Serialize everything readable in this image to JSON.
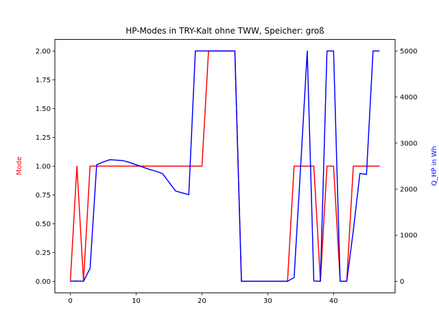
{
  "chart_data": {
    "type": "line",
    "title": "HP-Modes in TRY-Kalt ohne TWW, Speicher: groß",
    "xlabel": "",
    "ylabel_left": "Mode",
    "ylabel_right": "Q_HP in Wh",
    "xlim": [
      -2.35,
      49.35
    ],
    "ylim_left": [
      -0.1,
      2.1
    ],
    "ylim_right": [
      -250,
      5250
    ],
    "x_ticks": [
      0,
      10,
      20,
      30,
      40
    ],
    "y_left_ticks": [
      0.0,
      0.25,
      0.5,
      0.75,
      1.0,
      1.25,
      1.5,
      1.75,
      2.0
    ],
    "y_left_tick_labels": [
      "0.00",
      "0.25",
      "0.50",
      "0.75",
      "1.00",
      "1.25",
      "1.50",
      "1.75",
      "2.00"
    ],
    "y_right_ticks": [
      0,
      1000,
      2000,
      3000,
      4000,
      5000
    ],
    "grid": false,
    "colors": {
      "mode": "#ff0000",
      "q_hp": "#0000ff",
      "axis": "#000000"
    },
    "series": [
      {
        "name": "Mode",
        "axis": "left",
        "color": "#ff0000",
        "x": [
          0,
          1,
          2,
          3,
          4,
          5,
          6,
          7,
          8,
          9,
          10,
          11,
          12,
          13,
          14,
          15,
          16,
          17,
          18,
          19,
          20,
          21,
          22,
          23,
          24,
          25,
          26,
          27,
          28,
          29,
          30,
          31,
          32,
          33,
          34,
          35,
          36,
          37,
          38,
          39,
          40,
          41,
          42,
          43,
          44,
          45,
          46,
          47
        ],
        "values": [
          0,
          1,
          0,
          1,
          1,
          1,
          1,
          1,
          1,
          1,
          1,
          1,
          1,
          1,
          1,
          1,
          1,
          1,
          1,
          1,
          1,
          2,
          2,
          2,
          2,
          2,
          0,
          0,
          0,
          0,
          0,
          0,
          0,
          0,
          1,
          1,
          1,
          1,
          0,
          1,
          1,
          0,
          0,
          1,
          1,
          1,
          1,
          1
        ]
      },
      {
        "name": "Q_HP in Wh",
        "axis": "right",
        "color": "#0000ff",
        "x": [
          0,
          1,
          2,
          3,
          4,
          5,
          6,
          7,
          8,
          9,
          10,
          11,
          12,
          13,
          14,
          15,
          16,
          17,
          18,
          19,
          20,
          21,
          22,
          23,
          24,
          25,
          26,
          27,
          28,
          29,
          30,
          31,
          32,
          33,
          34,
          35,
          36,
          37,
          38,
          39,
          40,
          41,
          42,
          43,
          44,
          45,
          46,
          47
        ],
        "values": [
          0,
          5,
          0,
          280,
          2530,
          2590,
          2640,
          2630,
          2620,
          2580,
          2530,
          2480,
          2430,
          2390,
          2340,
          2150,
          1960,
          1920,
          1880,
          5000,
          5000,
          5000,
          5000,
          5000,
          5000,
          5000,
          0,
          0,
          0,
          0,
          0,
          0,
          0,
          0,
          80,
          2500,
          5000,
          5,
          0,
          5000,
          5000,
          0,
          0,
          1100,
          2340,
          2320,
          5000,
          5000
        ]
      }
    ]
  }
}
